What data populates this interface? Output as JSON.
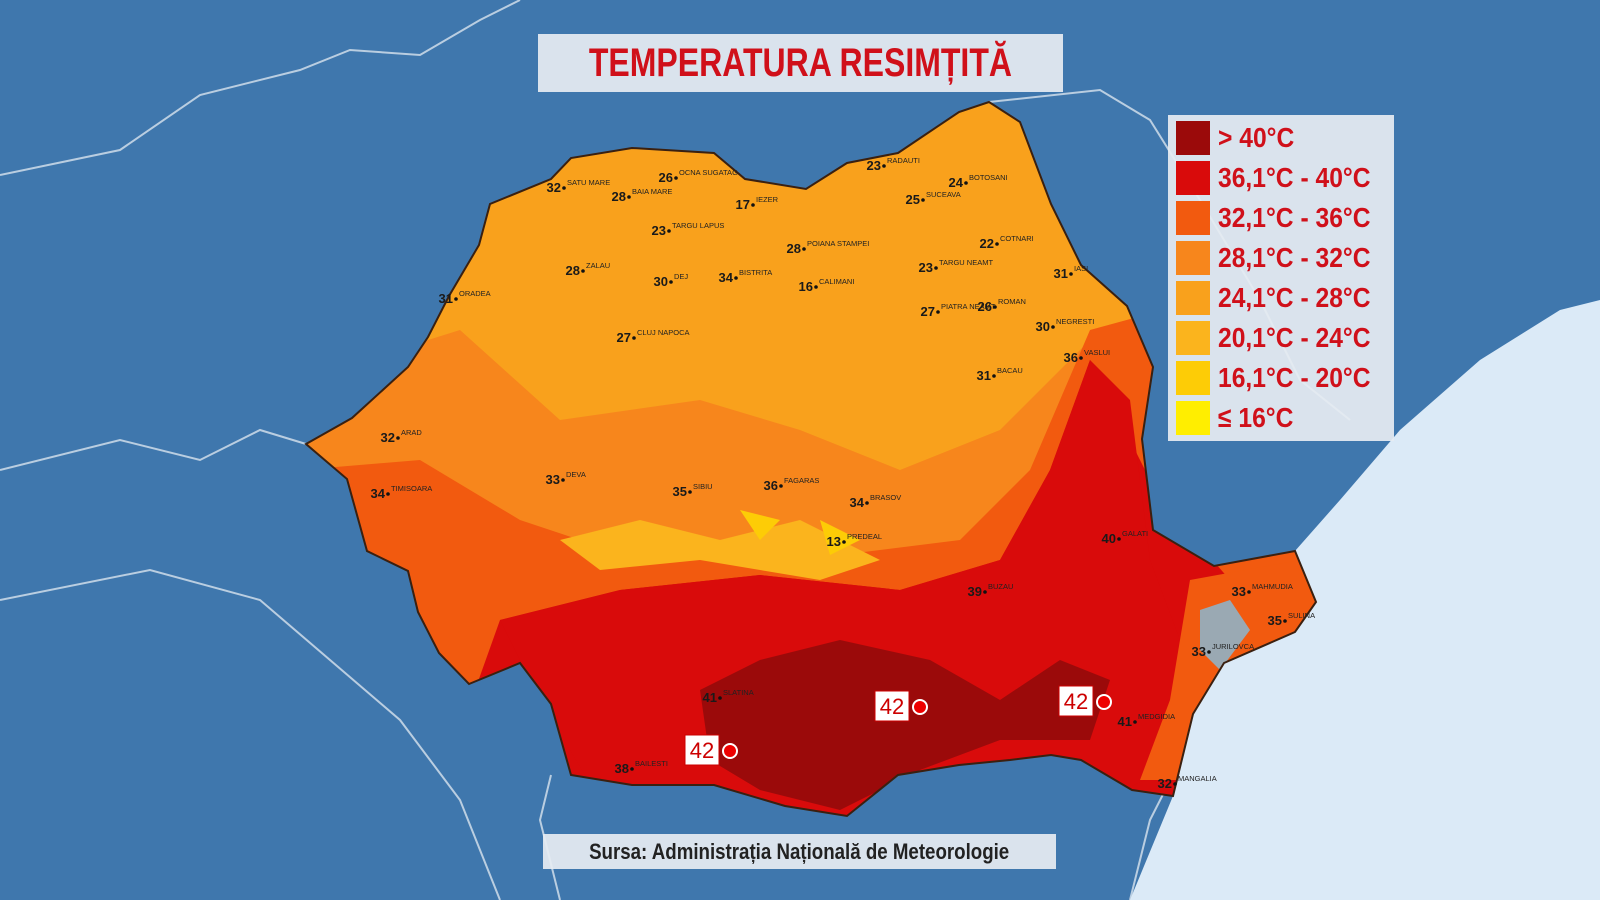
{
  "title": "TEMPERATURA RESIMȚITĂ",
  "source": "Sursa: Administrația Națională de Meteorologie",
  "legend": [
    {
      "label": "> 40°C",
      "color": "#9b0a0a"
    },
    {
      "label": "36,1°C - 40°C",
      "color": "#d90b0b"
    },
    {
      "label": "32,1°C - 36°C",
      "color": "#f25a0f"
    },
    {
      "label": "28,1°C - 32°C",
      "color": "#f7861c"
    },
    {
      "label": "24,1°C - 28°C",
      "color": "#f9a11c"
    },
    {
      "label": "20,1°C - 24°C",
      "color": "#fbb41d"
    },
    {
      "label": "16,1°C - 20°C",
      "color": "#fdcc06"
    },
    {
      "label": "≤ 16°C",
      "color": "#ffee00"
    }
  ],
  "hotspots": [
    42,
    42,
    42
  ],
  "stations": [
    {
      "name": "SATU MARE",
      "value": 32
    },
    {
      "name": "BAIA MARE",
      "value": 28
    },
    {
      "name": "OCNA SUGATAG",
      "value": 26
    },
    {
      "name": "RADAUTI",
      "value": 23
    },
    {
      "name": "BOTOSANI",
      "value": 24
    },
    {
      "name": "SUCEAVA",
      "value": 25
    },
    {
      "name": "IEZER",
      "value": 17
    },
    {
      "name": "TARGU LAPUS",
      "value": 23
    },
    {
      "name": "POIANA STAMPEI",
      "value": 28
    },
    {
      "name": "COTNARI",
      "value": 22
    },
    {
      "name": "ZALAU",
      "value": 28
    },
    {
      "name": "DEJ",
      "value": 30
    },
    {
      "name": "BISTRITA",
      "value": 34
    },
    {
      "name": "CALIMANI",
      "value": 16
    },
    {
      "name": "TARGU NEAMT",
      "value": 23
    },
    {
      "name": "IASI",
      "value": 31
    },
    {
      "name": "ORADEA",
      "value": 31
    },
    {
      "name": "PIATRA NEAMT",
      "value": 27
    },
    {
      "name": "ROMAN",
      "value": 26
    },
    {
      "name": "CLUJ NAPOCA",
      "value": 27
    },
    {
      "name": "NEGRESTI",
      "value": 30
    },
    {
      "name": "BACAU",
      "value": 31
    },
    {
      "name": "VASLUI",
      "value": 36
    },
    {
      "name": "ARAD",
      "value": 32
    },
    {
      "name": "TIMISOARA",
      "value": 34
    },
    {
      "name": "DEVA",
      "value": 33
    },
    {
      "name": "SIBIU",
      "value": 35
    },
    {
      "name": "FAGARAS",
      "value": 36
    },
    {
      "name": "BRASOV",
      "value": 34
    },
    {
      "name": "GALATI",
      "value": 40
    },
    {
      "name": "PREDEAL",
      "value": 13
    },
    {
      "name": "BUZAU",
      "value": 39
    },
    {
      "name": "BAILESTI",
      "value": 38
    },
    {
      "name": "SLATINA",
      "value": 41
    },
    {
      "name": "MEDGIDIA",
      "value": 41
    },
    {
      "name": "MANGALIA",
      "value": 32
    },
    {
      "name": "MAHMUDIA",
      "value": 33
    },
    {
      "name": "JURILOVCA",
      "value": 33
    },
    {
      "name": "SULINA",
      "value": 35
    }
  ]
}
